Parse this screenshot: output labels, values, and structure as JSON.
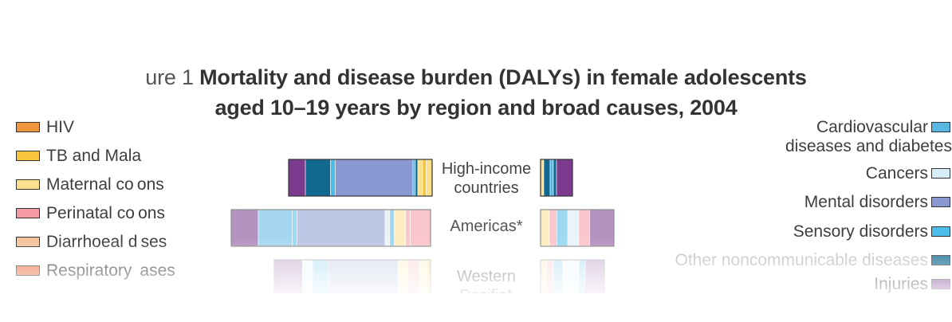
{
  "title": {
    "prefix": "ure 1",
    "line1": "Mortality and disease burden (DALYs) in female adolescents",
    "line2": "aged 10–19 years by region and broad causes, 2004"
  },
  "legend_left": [
    {
      "label": "HIV",
      "color": "#f0953f"
    },
    {
      "label": "TB and Mala",
      "color": "#f6c53c"
    },
    {
      "label": "Maternal co ons",
      "color": "#fde08e"
    },
    {
      "label": "Perinatal co ons",
      "color": "#f59aa2"
    },
    {
      "label": "Diarrhoeal d ses",
      "color": "#f4c39c"
    },
    {
      "label": "Respiratory  ases",
      "color": "#ee7b4c"
    }
  ],
  "legend_right": [
    {
      "label": "Cardiovascular",
      "label2": "diseases and diabetes",
      "color": "#5ab7e2"
    },
    {
      "label": "Cancers",
      "color": "#d6ecf6"
    },
    {
      "label": "Mental disorders",
      "color": "#8a98d1"
    },
    {
      "label": "Sensory disorders",
      "color": "#4dbde9"
    },
    {
      "label": "Other noncommunicable diseases",
      "color": "#12698f"
    },
    {
      "label": "Injuries",
      "color": "#7b3a8e"
    }
  ],
  "chart_data": {
    "type": "bar",
    "title": "Mortality and disease burden (DALYs) in female adolescents aged 10–19 years by region and broad causes, 2004",
    "categories": [
      "High-income countries",
      "Americas*",
      "Western Pacific*"
    ],
    "region_labels": [
      [
        "High-income",
        "countries"
      ],
      [
        "Americas*"
      ],
      [
        "Western",
        "Pacific*"
      ]
    ],
    "causes": [
      "Injuries",
      "Other noncommunicable diseases",
      "Sensory disorders",
      "Mental disorders",
      "Cancers",
      "Cardiovascular diseases and diabetes",
      "Perinatal conditions",
      "Maternal conditions",
      "TB and Malaria",
      "HIV"
    ],
    "colors": {
      "Injuries": "#7b3a8e",
      "Other noncommunicable diseases": "#12698f",
      "Sensory disorders": "#4dbde9",
      "Mental disorders": "#8a98d1",
      "Cancers": "#d6ecf6",
      "Cardiovascular diseases and diabetes": "#5ab7e2",
      "Perinatal conditions": "#f59aa2",
      "Maternal conditions": "#fde08e",
      "TB and Malaria": "#f6c53c",
      "HIV": "#f0953f"
    },
    "series": [
      {
        "name": "DALYs",
        "bars": [
          [
            [
              "Injuries",
              11.7
            ],
            [
              "Other noncommunicable diseases",
              17.5
            ],
            [
              "Sensory disorders",
              3.3
            ],
            [
              "Mental disorders",
              54.2
            ],
            [
              "Cardiovascular diseases and diabetes",
              1.7
            ],
            [
              "Other noncommunicable diseases",
              1.7
            ],
            [
              "Maternal conditions",
              3.3
            ],
            [
              "TB and Malaria",
              2.5
            ],
            [
              "Maternal conditions",
              4.2
            ]
          ],
          [
            [
              "Injuries",
              13.6
            ],
            [
              "Cardiovascular diseases and diabetes",
              17.0
            ],
            [
              "Sensory disorders",
              2.3
            ],
            [
              "Mental disorders",
              44.3
            ],
            [
              "Cancers",
              2.3
            ],
            [
              "Sensory disorders",
              2.3
            ],
            [
              "Maternal conditions",
              5.7
            ],
            [
              "Perinatal conditions",
              2.3
            ],
            [
              "Perinatal conditions",
              10.2
            ]
          ],
          [
            [
              "Injuries",
              18.0
            ],
            [
              "Cancers",
              6.5
            ],
            [
              "Sensory disorders",
              10.1
            ],
            [
              "Mental disorders",
              44.6
            ],
            [
              "Maternal conditions",
              6.5
            ],
            [
              "Perinatal conditions",
              7.2
            ],
            [
              "Maternal conditions",
              5.0
            ],
            [
              "TB and Malaria",
              2.1
            ]
          ]
        ]
      },
      {
        "name": "Mortality",
        "bars": [
          [
            [
              "Maternal conditions",
              10
            ],
            [
              "Other noncommunicable diseases",
              20
            ],
            [
              "Cardiovascular diseases and diabetes",
              10
            ],
            [
              "Other noncommunicable diseases",
              10
            ],
            [
              "Injuries",
              50
            ]
          ],
          [
            [
              "Maternal conditions",
              12
            ],
            [
              "Perinatal conditions",
              10
            ],
            [
              "Sensory disorders",
              15
            ],
            [
              "Cancers",
              15
            ],
            [
              "Perinatal conditions",
              15
            ],
            [
              "Injuries",
              33
            ]
          ],
          [
            [
              "Maternal conditions",
              10
            ],
            [
              "Perinatal conditions",
              10
            ],
            [
              "Cardiovascular diseases and diabetes",
              15
            ],
            [
              "Cancers",
              25
            ],
            [
              "Sensory disorders",
              10
            ],
            [
              "Injuries",
              30
            ]
          ]
        ]
      }
    ],
    "xlabel": "",
    "ylabel": ""
  }
}
